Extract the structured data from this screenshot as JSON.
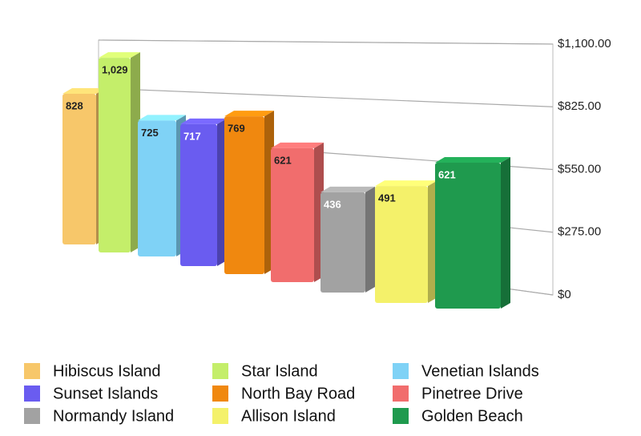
{
  "chart_data": {
    "type": "bar3d",
    "ylim": [
      0,
      1100
    ],
    "yticks": [
      {
        "value": 0,
        "label": "$0"
      },
      {
        "value": 275,
        "label": "$275.00"
      },
      {
        "value": 550,
        "label": "$550.00"
      },
      {
        "value": 825,
        "label": "$825.00"
      },
      {
        "value": 1100,
        "label": "$1,100.00"
      }
    ],
    "grid": true,
    "series": [
      {
        "name": "Hibiscus Island",
        "color": "#f7c76a",
        "values": [
          828
        ]
      },
      {
        "name": "Star Island",
        "color": "#c4ee6a",
        "values": [
          1029
        ],
        "value_labels": [
          "1,029"
        ]
      },
      {
        "name": "Venetian Islands",
        "color": "#7fd2f6",
        "values": [
          725
        ]
      },
      {
        "name": "Sunset Islands",
        "color": "#6a5cf0",
        "values": [
          717
        ]
      },
      {
        "name": "North Bay Road",
        "color": "#f0880f",
        "values": [
          769
        ]
      },
      {
        "name": "Pinetree Drive",
        "color": "#f16d6d",
        "values": [
          621
        ]
      },
      {
        "name": "Normandy Island",
        "color": "#a2a2a2",
        "values": [
          436
        ]
      },
      {
        "name": "Allison Island",
        "color": "#f4f16a",
        "values": [
          491
        ]
      },
      {
        "name": "Golden Beach",
        "color": "#1f9a4e",
        "values": [
          621
        ]
      }
    ]
  }
}
